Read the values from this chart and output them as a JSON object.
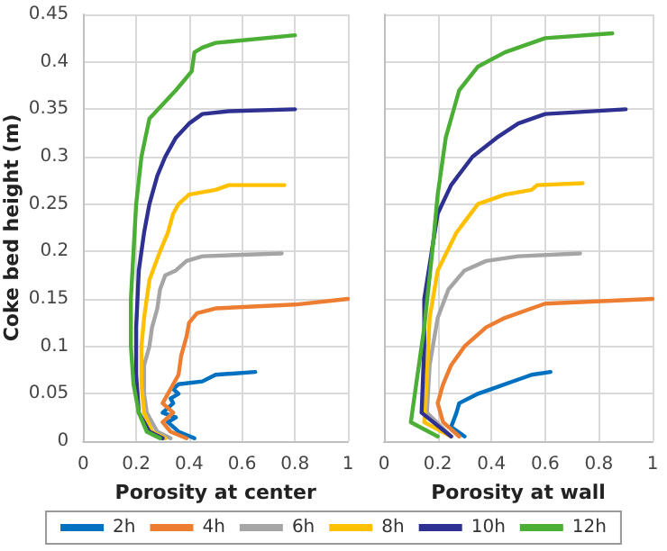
{
  "chart_data": [
    {
      "type": "line",
      "xlabel": "Porosity at center",
      "ylabel": "Coke bed height (m)",
      "xlim": [
        0,
        1
      ],
      "xticks": [
        0,
        0.2,
        0.4,
        0.6,
        0.8,
        1
      ],
      "ylim": [
        0,
        0.45
      ],
      "yticks": [
        0,
        0.05,
        0.1,
        0.15,
        0.2,
        0.25,
        0.3,
        0.35,
        0.4,
        0.45
      ],
      "grid": true,
      "legend": "bottom",
      "marker": "none",
      "line_style": "solid",
      "series": [
        {
          "name": "2h",
          "color": "#0070c0",
          "x": [
            0.42,
            0.36,
            0.32,
            0.35,
            0.3,
            0.34,
            0.33,
            0.36,
            0.34,
            0.36,
            0.45,
            0.5,
            0.65
          ],
          "values": [
            0.003,
            0.01,
            0.02,
            0.025,
            0.03,
            0.04,
            0.045,
            0.05,
            0.055,
            0.06,
            0.063,
            0.07,
            0.073
          ]
        },
        {
          "name": "4h",
          "color": "#ed7d31",
          "x": [
            0.39,
            0.33,
            0.3,
            0.34,
            0.3,
            0.33,
            0.36,
            0.37,
            0.38,
            0.39,
            0.4,
            0.43,
            0.5,
            0.8,
            1.0
          ],
          "values": [
            0.003,
            0.01,
            0.02,
            0.03,
            0.04,
            0.055,
            0.07,
            0.09,
            0.1,
            0.11,
            0.125,
            0.135,
            0.14,
            0.144,
            0.15
          ]
        },
        {
          "name": "6h",
          "color": "#a5a5a5",
          "x": [
            0.33,
            0.28,
            0.24,
            0.23,
            0.23,
            0.25,
            0.26,
            0.28,
            0.29,
            0.31,
            0.35,
            0.39,
            0.45,
            0.75
          ],
          "values": [
            0.003,
            0.01,
            0.03,
            0.05,
            0.08,
            0.1,
            0.12,
            0.14,
            0.16,
            0.175,
            0.18,
            0.19,
            0.195,
            0.198
          ]
        },
        {
          "name": "8h",
          "color": "#ffc000",
          "x": [
            0.31,
            0.26,
            0.23,
            0.22,
            0.22,
            0.23,
            0.25,
            0.29,
            0.32,
            0.34,
            0.36,
            0.4,
            0.5,
            0.55,
            0.76
          ],
          "values": [
            0.003,
            0.01,
            0.03,
            0.06,
            0.1,
            0.13,
            0.17,
            0.2,
            0.22,
            0.24,
            0.25,
            0.26,
            0.265,
            0.27,
            0.27
          ]
        },
        {
          "name": "10h",
          "color": "#2e3192",
          "x": [
            0.3,
            0.25,
            0.21,
            0.2,
            0.2,
            0.21,
            0.23,
            0.25,
            0.28,
            0.31,
            0.35,
            0.4,
            0.45,
            0.55,
            0.8
          ],
          "values": [
            0.003,
            0.01,
            0.03,
            0.07,
            0.12,
            0.18,
            0.22,
            0.25,
            0.28,
            0.3,
            0.32,
            0.335,
            0.345,
            0.348,
            0.35
          ]
        },
        {
          "name": "12h",
          "color": "#4caf35",
          "x": [
            0.29,
            0.24,
            0.21,
            0.19,
            0.18,
            0.18,
            0.19,
            0.2,
            0.22,
            0.25,
            0.3,
            0.35,
            0.38,
            0.41,
            0.42,
            0.45,
            0.5,
            0.8
          ],
          "values": [
            0.003,
            0.01,
            0.03,
            0.06,
            0.1,
            0.15,
            0.2,
            0.25,
            0.3,
            0.34,
            0.355,
            0.37,
            0.38,
            0.39,
            0.41,
            0.415,
            0.42,
            0.428
          ]
        }
      ]
    },
    {
      "type": "line",
      "xlabel": "Porosity at wall",
      "xlim": [
        0,
        1
      ],
      "xticks": [
        0,
        0.2,
        0.4,
        0.6,
        0.8,
        1
      ],
      "ylim": [
        0,
        0.45
      ],
      "yticks": [
        0,
        0.05,
        0.1,
        0.15,
        0.2,
        0.25,
        0.3,
        0.35,
        0.4,
        0.45
      ],
      "grid": true,
      "tick_labels": "x",
      "marker": "none",
      "line_style": "solid",
      "series": [
        {
          "color": "#0070c0",
          "x": [
            0.3,
            0.25,
            0.27,
            0.28,
            0.35,
            0.4,
            0.5,
            0.55,
            0.62
          ],
          "values": [
            0.005,
            0.015,
            0.03,
            0.04,
            0.05,
            0.055,
            0.065,
            0.07,
            0.073
          ]
        },
        {
          "color": "#ed7d31",
          "x": [
            0.28,
            0.22,
            0.2,
            0.22,
            0.25,
            0.3,
            0.38,
            0.45,
            0.55,
            0.6,
            1.0
          ],
          "values": [
            0.005,
            0.02,
            0.04,
            0.06,
            0.08,
            0.1,
            0.12,
            0.13,
            0.14,
            0.145,
            0.15
          ]
        },
        {
          "color": "#a5a5a5",
          "x": [
            0.25,
            0.16,
            0.17,
            0.2,
            0.24,
            0.3,
            0.38,
            0.5,
            0.73
          ],
          "values": [
            0.005,
            0.03,
            0.08,
            0.13,
            0.16,
            0.18,
            0.19,
            0.195,
            0.198
          ]
        },
        {
          "color": "#ffc000",
          "x": [
            0.25,
            0.15,
            0.16,
            0.17,
            0.2,
            0.27,
            0.35,
            0.45,
            0.55,
            0.57,
            0.74
          ],
          "values": [
            0.005,
            0.02,
            0.07,
            0.13,
            0.18,
            0.22,
            0.25,
            0.26,
            0.265,
            0.27,
            0.272
          ]
        },
        {
          "color": "#2e3192",
          "x": [
            0.25,
            0.14,
            0.15,
            0.15,
            0.2,
            0.25,
            0.33,
            0.42,
            0.5,
            0.6,
            0.9
          ],
          "values": [
            0.005,
            0.03,
            0.1,
            0.15,
            0.24,
            0.27,
            0.3,
            0.32,
            0.335,
            0.345,
            0.35
          ]
        },
        {
          "color": "#4caf35",
          "x": [
            0.2,
            0.1,
            0.12,
            0.15,
            0.18,
            0.2,
            0.23,
            0.28,
            0.35,
            0.45,
            0.6,
            0.85
          ],
          "values": [
            0.005,
            0.02,
            0.06,
            0.12,
            0.2,
            0.26,
            0.32,
            0.37,
            0.395,
            0.41,
            0.425,
            0.43
          ]
        }
      ]
    }
  ]
}
